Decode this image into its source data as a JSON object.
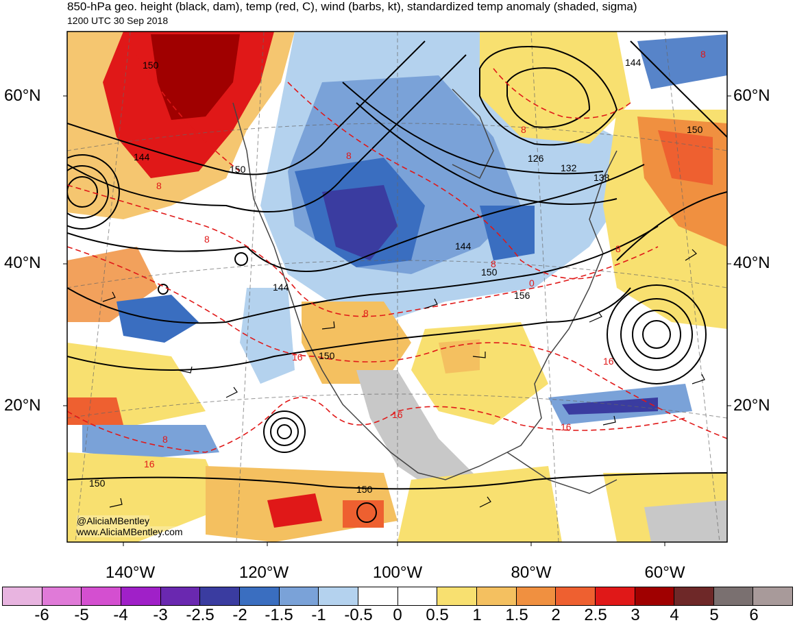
{
  "header": {
    "title": "850-hPa geo. height (black, dam), temp (red, C), wind (barbs, kt), standardized temp anomaly (shaded, sigma)",
    "subtitle": "1200 UTC 30 Sep 2018"
  },
  "axes": {
    "lat_labels": [
      "60°N",
      "40°N",
      "20°N"
    ],
    "lon_labels": [
      "140°W",
      "120°W",
      "100°W",
      "80°W",
      "60°W"
    ]
  },
  "contour_labels": {
    "height": [
      "150",
      "144",
      "150",
      "150",
      "150",
      "144",
      "150",
      "156",
      "126",
      "132",
      "138",
      "144",
      "150",
      "150",
      "144"
    ],
    "temp": [
      "8",
      "8",
      "8",
      "8",
      "16",
      "16",
      "16",
      "16",
      "16",
      "0",
      "8",
      "8",
      "8",
      "8",
      "8"
    ]
  },
  "credits": {
    "handle": "@AliciaMBentley",
    "website": "www.AliciaMBentley.com"
  },
  "colorbar": {
    "labels": [
      "-6",
      "-5",
      "-4",
      "-3",
      "-2.5",
      "-2",
      "-1.5",
      "-1",
      "-0.5",
      "0",
      "0.5",
      "1",
      "1.5",
      "2",
      "2.5",
      "3",
      "4",
      "5",
      "6"
    ],
    "colors": [
      "#e8b4e0",
      "#e07ad8",
      "#d44fd0",
      "#a020c8",
      "#6a28b0",
      "#3a3ca0",
      "#3a6ec0",
      "#7aa2d8",
      "#b4d2ee",
      "#ffffff",
      "#ffffff",
      "#f8e070",
      "#f4c060",
      "#f09040",
      "#ee6030",
      "#e01818",
      "#a00000",
      "#6e2828",
      "#7a7070",
      "#a89a9a"
    ]
  }
}
